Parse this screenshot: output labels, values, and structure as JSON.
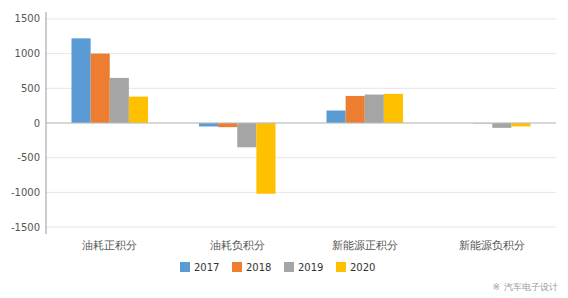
{
  "chart_data": {
    "type": "bar",
    "categories": [
      "油耗正积分",
      "油耗负积分",
      "新能源正积分",
      "新能源负积分"
    ],
    "series": [
      {
        "name": "2017",
        "color": "#5B9BD5",
        "values": [
          1220,
          -50,
          180,
          0
        ]
      },
      {
        "name": "2018",
        "color": "#ED7D31",
        "values": [
          1000,
          -60,
          390,
          -5
        ]
      },
      {
        "name": "2019",
        "color": "#A5A5A5",
        "values": [
          650,
          -350,
          410,
          -70
        ]
      },
      {
        "name": "2020",
        "color": "#FFC000",
        "values": [
          380,
          -1020,
          420,
          -50
        ]
      }
    ],
    "ylim": [
      -1600,
      1600
    ],
    "yticks": [
      -1500,
      -1000,
      -500,
      0,
      500,
      1000,
      1500
    ],
    "grid": true,
    "legend": "bottom",
    "annotations": [
      "※",
      "汽车电子设计"
    ]
  }
}
